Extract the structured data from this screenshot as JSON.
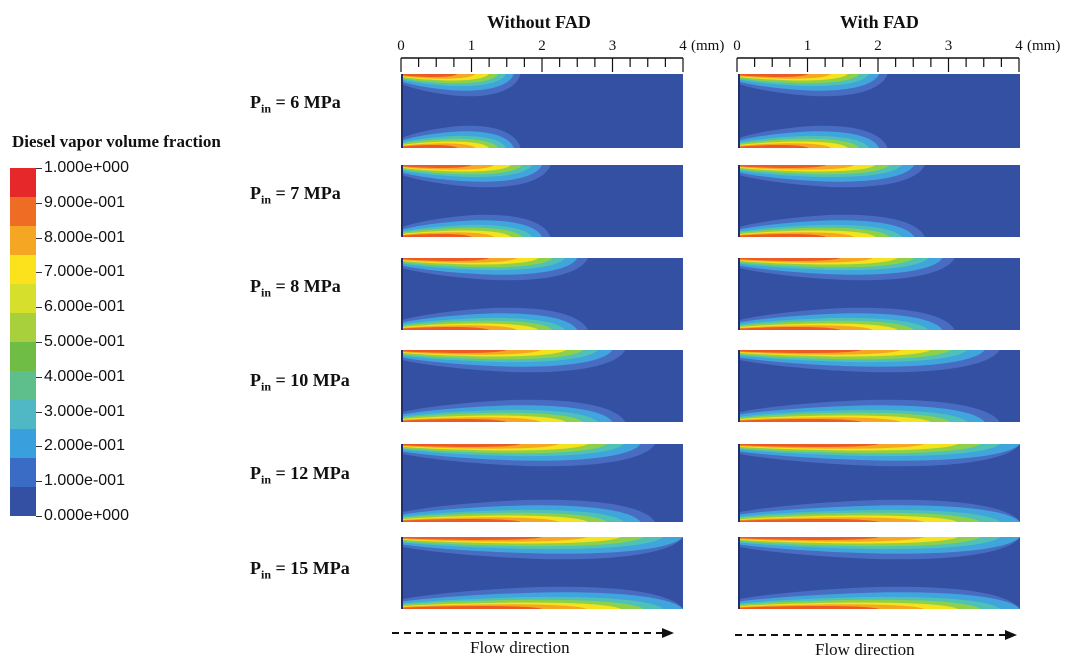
{
  "legend": {
    "title": "Diesel vapor volume fraction",
    "labels": [
      "1.000e+000",
      "9.000e-001",
      "8.000e-001",
      "7.000e-001",
      "6.000e-001",
      "5.000e-001",
      "4.000e-001",
      "3.000e-001",
      "2.000e-001",
      "1.000e-001",
      "0.000e+000"
    ],
    "colors": [
      "#e6282a",
      "#ef6c24",
      "#f5a623",
      "#fbe21d",
      "#d6e02c",
      "#a8cf3c",
      "#6fbd45",
      "#5fbf8c",
      "#4fb8c4",
      "#39a0dd",
      "#3a6cc5",
      "#3450a2"
    ]
  },
  "columns": [
    {
      "title": "Without FAD",
      "axis_ticks": [
        "0",
        "1",
        "2",
        "3",
        "4"
      ],
      "axis_unit": "(mm)"
    },
    {
      "title": "With FAD",
      "axis_ticks": [
        "0",
        "1",
        "2",
        "3",
        "4"
      ],
      "axis_unit": "(mm)"
    }
  ],
  "rows": [
    {
      "label_prefix": "P",
      "label_sub": "in",
      "label_value": "= 6 MPa",
      "cavity_length_mm": [
        1.6,
        2.0
      ]
    },
    {
      "label_prefix": "P",
      "label_sub": "in",
      "label_value": "= 7 MPa",
      "cavity_length_mm": [
        2.0,
        2.5
      ]
    },
    {
      "label_prefix": "P",
      "label_sub": "in",
      "label_value": "= 8 MPa",
      "cavity_length_mm": [
        2.5,
        2.9
      ]
    },
    {
      "label_prefix": "P",
      "label_sub": "in",
      "label_value": "= 10 MPa",
      "cavity_length_mm": [
        3.0,
        3.5
      ]
    },
    {
      "label_prefix": "P",
      "label_sub": "in",
      "label_value": "= 12 MPa",
      "cavity_length_mm": [
        3.4,
        4.0
      ]
    },
    {
      "label_prefix": "P",
      "label_sub": "in",
      "label_value": "= 15 MPa",
      "cavity_length_mm": [
        4.0,
        4.0
      ]
    }
  ],
  "flow_label": "Flow direction",
  "field_color": "#3450a2"
}
